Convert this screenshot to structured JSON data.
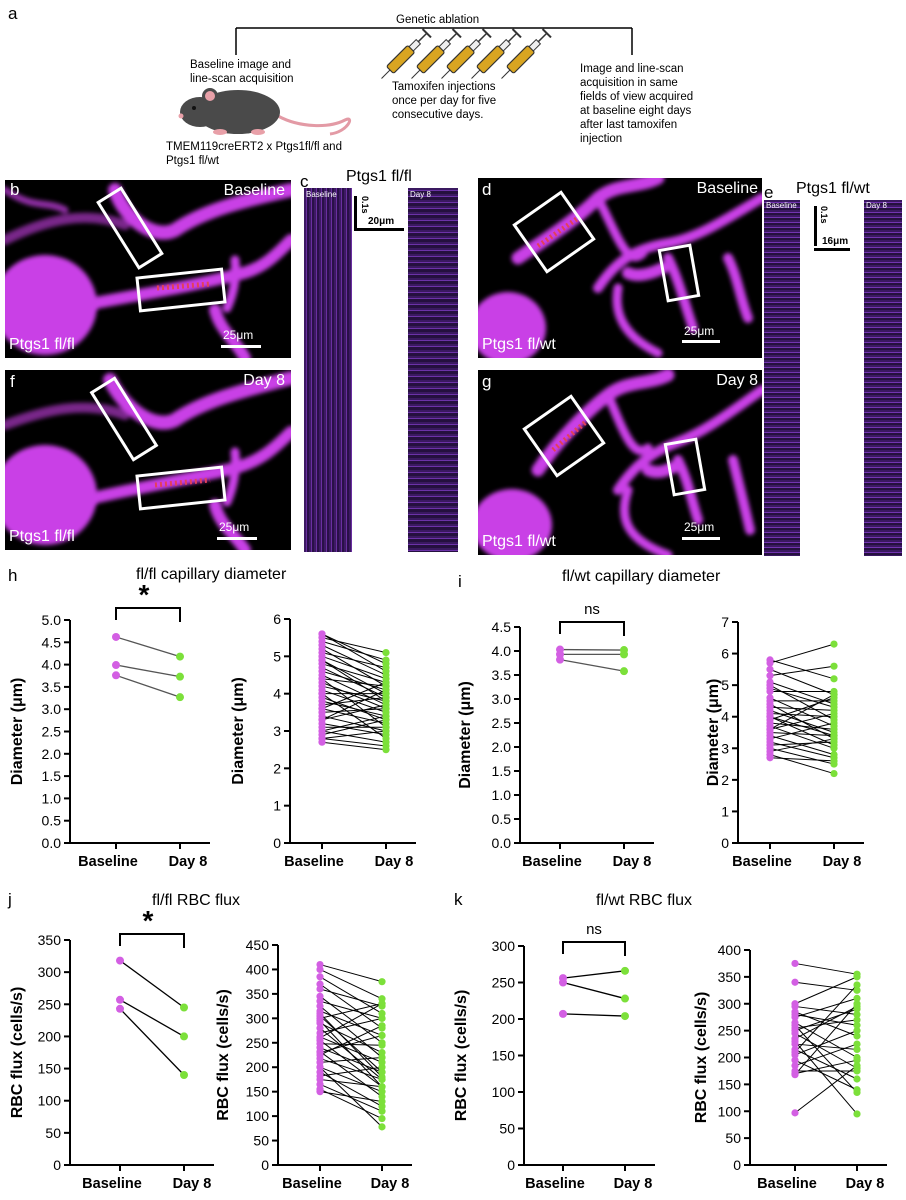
{
  "panel_letters": {
    "a": "a",
    "b": "b",
    "c": "c",
    "d": "d",
    "e": "e",
    "f": "f",
    "g": "g",
    "h": "h",
    "i": "i",
    "j": "j",
    "k": "k"
  },
  "schematic": {
    "top_label": "Genetic ablation",
    "left_text": [
      "Baseline image and",
      "line-scan acquisition"
    ],
    "mouse_text": [
      "TMEM119creERT2 x Ptgs1fl/fl and",
      "Ptgs1 fl/wt"
    ],
    "middle_text": [
      "Tamoxifen injections",
      "once per day for five",
      "consecutive days."
    ],
    "right_text": [
      "Image and line-scan",
      "acquisition in same",
      "fields of view acquired",
      "at baseline eight days",
      "after last tamoxifen",
      "injection"
    ],
    "colors": {
      "syringe_fill": "#d9a521",
      "mouse_body": "#4a4a4a",
      "mouse_ear": "#e8a0a8",
      "mouse_tail": "#e39aa5"
    }
  },
  "images": {
    "b": {
      "corner": "Baseline",
      "genotype": "Ptgs1 fl/fl",
      "scale": "25μm"
    },
    "f": {
      "corner": "Day 8",
      "genotype": "Ptgs1 fl/fl",
      "scale": "25μm"
    },
    "d": {
      "corner": "Baseline",
      "genotype": "Ptgs1 fl/wt",
      "scale": "25μm"
    },
    "g": {
      "corner": "Day 8",
      "genotype": "Ptgs1 fl/wt",
      "scale": "25μm"
    }
  },
  "linescans": {
    "c": {
      "title": "Ptgs1 fl/fl",
      "left": "Baseline",
      "right": "Day 8",
      "time_scale": "0.1s",
      "space_scale": "20μm"
    },
    "e": {
      "title": "Ptgs1 fl/wt",
      "left": "Baseline",
      "right": "Day 8",
      "time_scale": "0.1s",
      "space_scale": "16μm"
    }
  },
  "colors": {
    "baseline": "#d35fe3",
    "day8": "#7ce03a",
    "vessel": "#c940e6",
    "image_bg": "#000000"
  },
  "chart_data": [
    {
      "panel": "h-left",
      "type": "scatter",
      "title": "fl/fl capillary diameter",
      "ylabel": "Diameter (μm)",
      "categories": [
        "Baseline",
        "Day 8"
      ],
      "ylim": [
        0,
        5.0
      ],
      "yticks": [
        "0.0",
        "0.5",
        "1.0",
        "1.5",
        "2.0",
        "2.5",
        "3.0",
        "3.5",
        "4.0",
        "4.5",
        "5.0"
      ],
      "pairs": [
        [
          4.62,
          4.18
        ],
        [
          3.99,
          3.73
        ],
        [
          3.76,
          3.27
        ]
      ],
      "significance": "*"
    },
    {
      "panel": "h-right",
      "type": "scatter",
      "title": "",
      "ylabel": "Diameter (μm)",
      "categories": [
        "Baseline",
        "Day 8"
      ],
      "ylim": [
        0,
        6
      ],
      "yticks": [
        "0",
        "1",
        "2",
        "3",
        "4",
        "5",
        "6"
      ],
      "pairs": [
        [
          5.6,
          4.8
        ],
        [
          5.5,
          5.1
        ],
        [
          5.4,
          4.9
        ],
        [
          5.3,
          4.5
        ],
        [
          5.2,
          4.2
        ],
        [
          5.1,
          4.7
        ],
        [
          5.0,
          4.4
        ],
        [
          4.9,
          4.0
        ],
        [
          4.8,
          4.3
        ],
        [
          4.7,
          3.9
        ],
        [
          4.6,
          4.1
        ],
        [
          4.5,
          3.7
        ],
        [
          4.4,
          4.2
        ],
        [
          4.3,
          3.6
        ],
        [
          4.2,
          3.8
        ],
        [
          4.1,
          3.5
        ],
        [
          4.0,
          4.0
        ],
        [
          3.9,
          3.3
        ],
        [
          3.8,
          3.4
        ],
        [
          3.7,
          3.9
        ],
        [
          3.6,
          3.2
        ],
        [
          3.5,
          3.6
        ],
        [
          3.4,
          3.0
        ],
        [
          3.3,
          3.7
        ],
        [
          3.2,
          2.9
        ],
        [
          3.1,
          3.1
        ],
        [
          3.0,
          2.7
        ],
        [
          2.9,
          3.3
        ],
        [
          2.8,
          2.6
        ],
        [
          2.7,
          2.5
        ],
        [
          4.4,
          3.1
        ],
        [
          3.6,
          4.3
        ],
        [
          4.9,
          3.8
        ],
        [
          3.0,
          3.4
        ],
        [
          5.6,
          4.6
        ],
        [
          2.8,
          3.0
        ],
        [
          4.0,
          2.8
        ],
        [
          3.3,
          4.1
        ]
      ]
    },
    {
      "panel": "i-left",
      "type": "scatter",
      "title": "fl/wt capillary diameter",
      "ylabel": "Diameter (μm)",
      "categories": [
        "Baseline",
        "Day 8"
      ],
      "ylim": [
        0,
        4.5
      ],
      "yticks": [
        "0.0",
        "0.5",
        "1.0",
        "1.5",
        "2.0",
        "2.5",
        "3.0",
        "3.5",
        "4.0",
        "4.5"
      ],
      "pairs": [
        [
          4.03,
          4.02
        ],
        [
          3.93,
          3.93
        ],
        [
          3.82,
          3.58
        ]
      ],
      "significance": "ns"
    },
    {
      "panel": "i-right",
      "type": "scatter",
      "title": "",
      "ylabel": "Diameter (μm)",
      "categories": [
        "Baseline",
        "Day 8"
      ],
      "ylim": [
        0,
        7
      ],
      "yticks": [
        "0",
        "1",
        "2",
        "3",
        "4",
        "5",
        "6",
        "7"
      ],
      "pairs": [
        [
          5.8,
          5.2
        ],
        [
          5.7,
          6.3
        ],
        [
          5.5,
          4.7
        ],
        [
          5.3,
          5.6
        ],
        [
          5.1,
          4.4
        ],
        [
          5.0,
          3.9
        ],
        [
          4.8,
          4.8
        ],
        [
          4.6,
          3.7
        ],
        [
          4.5,
          4.5
        ],
        [
          4.4,
          3.3
        ],
        [
          4.3,
          4.2
        ],
        [
          4.2,
          3.5
        ],
        [
          4.1,
          4.0
        ],
        [
          4.0,
          3.1
        ],
        [
          3.9,
          4.6
        ],
        [
          3.8,
          3.6
        ],
        [
          3.7,
          3.0
        ],
        [
          3.6,
          4.1
        ],
        [
          3.5,
          3.4
        ],
        [
          3.4,
          2.8
        ],
        [
          3.3,
          3.8
        ],
        [
          3.2,
          2.7
        ],
        [
          3.1,
          3.2
        ],
        [
          3.0,
          2.5
        ],
        [
          2.9,
          3.3
        ],
        [
          2.8,
          2.2
        ],
        [
          2.7,
          2.6
        ],
        [
          4.9,
          4.3
        ],
        [
          3.6,
          4.7
        ],
        [
          4.0,
          3.4
        ]
      ]
    },
    {
      "panel": "j-left",
      "type": "scatter",
      "title": "fl/fl RBC flux",
      "ylabel": "RBC flux (cells/s)",
      "categories": [
        "Baseline",
        "Day 8"
      ],
      "ylim": [
        0,
        350
      ],
      "yticks": [
        "0",
        "50",
        "100",
        "150",
        "200",
        "250",
        "300",
        "350"
      ],
      "pairs": [
        [
          318,
          245
        ],
        [
          257,
          200
        ],
        [
          243,
          140
        ]
      ],
      "significance": "*"
    },
    {
      "panel": "j-right",
      "type": "scatter",
      "title": "",
      "ylabel": "RBC flux (cells/s)",
      "categories": [
        "Baseline",
        "Day 8"
      ],
      "ylim": [
        0,
        450
      ],
      "yticks": [
        "0",
        "50",
        "100",
        "150",
        "200",
        "250",
        "300",
        "350",
        "400",
        "450"
      ],
      "pairs": [
        [
          410,
          375
        ],
        [
          400,
          340
        ],
        [
          385,
          310
        ],
        [
          370,
          280
        ],
        [
          360,
          325
        ],
        [
          345,
          250
        ],
        [
          335,
          300
        ],
        [
          325,
          220
        ],
        [
          315,
          265
        ],
        [
          305,
          190
        ],
        [
          300,
          330
        ],
        [
          290,
          230
        ],
        [
          280,
          175
        ],
        [
          270,
          300
        ],
        [
          262,
          210
        ],
        [
          255,
          160
        ],
        [
          248,
          245
        ],
        [
          240,
          190
        ],
        [
          232,
          140
        ],
        [
          225,
          285
        ],
        [
          218,
          175
        ],
        [
          210,
          220
        ],
        [
          200,
          150
        ],
        [
          190,
          120
        ],
        [
          182,
          200
        ],
        [
          175,
          160
        ],
        [
          165,
          110
        ],
        [
          155,
          95
        ],
        [
          150,
          130
        ],
        [
          295,
          160
        ],
        [
          260,
          330
        ],
        [
          310,
          180
        ],
        [
          230,
          265
        ],
        [
          200,
          78
        ]
      ]
    },
    {
      "panel": "k-left",
      "type": "scatter",
      "title": "fl/wt RBC flux",
      "ylabel": "RBC flux (cells/s)",
      "categories": [
        "Baseline",
        "Day 8"
      ],
      "ylim": [
        0,
        300
      ],
      "yticks": [
        "0",
        "50",
        "100",
        "150",
        "200",
        "250",
        "300"
      ],
      "pairs": [
        [
          256,
          266
        ],
        [
          250,
          228
        ],
        [
          207,
          204
        ]
      ],
      "significance": "ns"
    },
    {
      "panel": "k-right",
      "type": "scatter",
      "title": "",
      "ylabel": "RBC flux (cells/s)",
      "categories": [
        "Baseline",
        "Day 8"
      ],
      "ylim": [
        0,
        400
      ],
      "yticks": [
        "0",
        "50",
        "100",
        "150",
        "200",
        "250",
        "300",
        "350",
        "400"
      ],
      "pairs": [
        [
          375,
          355
        ],
        [
          340,
          325
        ],
        [
          300,
          350
        ],
        [
          295,
          280
        ],
        [
          285,
          240
        ],
        [
          275,
          310
        ],
        [
          265,
          200
        ],
        [
          255,
          270
        ],
        [
          245,
          180
        ],
        [
          235,
          295
        ],
        [
          225,
          215
        ],
        [
          215,
          160
        ],
        [
          205,
          250
        ],
        [
          195,
          140
        ],
        [
          185,
          225
        ],
        [
          175,
          175
        ],
        [
          168,
          300
        ],
        [
          260,
          135
        ],
        [
          230,
          95
        ],
        [
          210,
          335
        ],
        [
          280,
          260
        ],
        [
          170,
          195
        ],
        [
          97,
          185
        ],
        [
          250,
          290
        ]
      ]
    }
  ]
}
